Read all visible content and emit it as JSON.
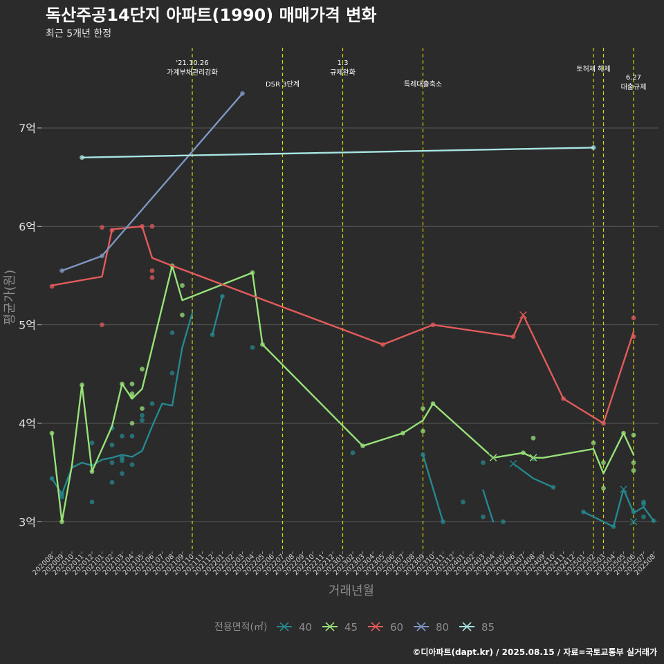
{
  "title": "독산주공14단지 아파트(1990) 매매가격 변화",
  "subtitle": "최근 5개년 한정",
  "caption": "©디아파트(dapt.kr) / 2025.08.15 / 자료=국토교통부 실거래가",
  "colors": {
    "background": "#2b2b2b",
    "grid": "#5a5a5a",
    "event_line": "#d7d700",
    "s40": "#26888f",
    "s45": "#98e27a",
    "s60": "#e35b5b",
    "s80": "#7e96c3",
    "s85": "#a8e6e4"
  },
  "chart_data": {
    "type": "line",
    "xlabel": "거래년월",
    "ylabel": "평균가(원)",
    "ylim": [
      2.7,
      7.85
    ],
    "y_ticks": [
      3,
      4,
      5,
      6,
      7
    ],
    "y_tick_labels": [
      "3억",
      "4억",
      "5억",
      "6억",
      "7억"
    ],
    "grid": true,
    "x_categories": [
      "202008",
      "202009",
      "202010",
      "202011",
      "202012",
      "202101",
      "202102",
      "202103",
      "202104",
      "202105",
      "202106",
      "202107",
      "202108",
      "202109",
      "202110",
      "202111",
      "202112",
      "202201",
      "202202",
      "202203",
      "202204",
      "202205",
      "202206",
      "202207",
      "202208",
      "202209",
      "202210",
      "202211",
      "202212",
      "202301",
      "202302",
      "202303",
      "202304",
      "202305",
      "202306",
      "202307",
      "202308",
      "202309",
      "202310",
      "202311",
      "202312",
      "202401",
      "202402",
      "202403",
      "202404",
      "202405",
      "202406",
      "202407",
      "202408",
      "202409",
      "202410",
      "202411",
      "202412",
      "202501",
      "202502",
      "202503",
      "202504",
      "202505",
      "202506",
      "202507",
      "202508"
    ],
    "legend_title": "전용면적(㎡)",
    "legend_position": "bottom",
    "events": [
      {
        "x": "202110",
        "label": "'21.10.26\n가계부채관리강화",
        "row": "top"
      },
      {
        "x": "202207",
        "label": "DSR 3단계",
        "row": "low"
      },
      {
        "x": "202301",
        "label": "1.3\n규제완화",
        "row": "top"
      },
      {
        "x": "202309",
        "label": "특례대출축소",
        "row": "low"
      },
      {
        "x": "202502",
        "label": "토허제 해제",
        "row": "mid"
      },
      {
        "x": "202503",
        "label": "",
        "row": "none"
      },
      {
        "x": "202506",
        "label": "6.27\n대출규제",
        "row": "low2"
      }
    ],
    "series": [
      {
        "name": "40",
        "color_key": "s40",
        "line_segments": [
          [
            [
              "202008",
              3.44
            ],
            [
              "202009",
              3.28
            ],
            [
              "202010",
              3.55
            ],
            [
              "202011",
              3.6
            ],
            [
              "202012",
              3.57
            ],
            [
              "202101",
              3.63
            ],
            [
              "202102",
              3.65
            ],
            [
              "202103",
              3.68
            ],
            [
              "202104",
              3.66
            ],
            [
              "202105",
              3.72
            ],
            [
              "202106",
              3.97
            ],
            [
              "202107",
              4.2
            ],
            [
              "202108",
              4.18
            ],
            [
              "202109",
              4.77
            ],
            [
              "202110",
              5.12
            ]
          ],
          [
            [
              "202112",
              4.9
            ],
            [
              "202201",
              5.29
            ]
          ],
          [
            [
              "202309",
              3.68
            ],
            [
              "202311",
              3.0
            ]
          ],
          [
            [
              "202403",
              3.32
            ],
            [
              "202404",
              3.0
            ]
          ],
          [
            [
              "202406",
              3.59
            ],
            [
              "202408",
              3.44
            ],
            [
              "202410",
              3.35
            ]
          ],
          [
            [
              "202501",
              3.1
            ],
            [
              "202504",
              2.95
            ],
            [
              "202505",
              3.33
            ],
            [
              "202506",
              3.09
            ],
            [
              "202507",
              3.15
            ],
            [
              "202508",
              3.01
            ]
          ]
        ],
        "points": [
          [
            "202008",
            3.44
          ],
          [
            "202009",
            3.28
          ],
          [
            "202009",
            3.25
          ],
          [
            "202012",
            3.2
          ],
          [
            "202012",
            3.8
          ],
          [
            "202102",
            3.95
          ],
          [
            "202102",
            3.78
          ],
          [
            "202102",
            3.4
          ],
          [
            "202102",
            3.6
          ],
          [
            "202103",
            3.87
          ],
          [
            "202103",
            3.65
          ],
          [
            "202103",
            3.62
          ],
          [
            "202103",
            3.49
          ],
          [
            "202104",
            3.87
          ],
          [
            "202104",
            3.58
          ],
          [
            "202105",
            4.08
          ],
          [
            "202105",
            4.03
          ],
          [
            "202106",
            4.2
          ],
          [
            "202108",
            4.51
          ],
          [
            "202108",
            4.92
          ],
          [
            "202112",
            4.9
          ],
          [
            "202201",
            5.29
          ],
          [
            "202204",
            4.77
          ],
          [
            "202302",
            3.7
          ],
          [
            "202309",
            3.68
          ],
          [
            "202311",
            3.0
          ],
          [
            "202401",
            3.2
          ],
          [
            "202403",
            3.6
          ],
          [
            "202403",
            3.05
          ],
          [
            "202405",
            3.0
          ],
          [
            "202408",
            3.64
          ],
          [
            "202410",
            3.35
          ],
          [
            "202501",
            3.1
          ],
          [
            "202504",
            2.95
          ],
          [
            "202506",
            3.1
          ],
          [
            "202507",
            3.2
          ],
          [
            "202507",
            3.18
          ],
          [
            "202507",
            3.05
          ],
          [
            "202508",
            3.01
          ]
        ],
        "cross_points": [
          [
            "202406",
            3.59
          ],
          [
            "202505",
            3.33
          ],
          [
            "202506",
            3.0
          ]
        ]
      },
      {
        "name": "45",
        "color_key": "s45",
        "line_segments": [
          [
            [
              "202008",
              3.9
            ],
            [
              "202009",
              3.0
            ],
            [
              "202010",
              3.57
            ],
            [
              "202011",
              4.39
            ],
            [
              "202012",
              3.51
            ],
            [
              "202102",
              3.97
            ],
            [
              "202103",
              4.4
            ],
            [
              "202104",
              4.25
            ],
            [
              "202105",
              4.35
            ],
            [
              "202108",
              5.6
            ],
            [
              "202109",
              5.25
            ],
            [
              "202204",
              5.53
            ],
            [
              "202205",
              4.8
            ],
            [
              "202303",
              3.77
            ],
            [
              "202307",
              3.9
            ],
            [
              "202309",
              4.03
            ],
            [
              "202310",
              4.2
            ],
            [
              "202404",
              3.65
            ],
            [
              "202407",
              3.7
            ],
            [
              "202408",
              3.65
            ],
            [
              "202409",
              3.65
            ],
            [
              "202502",
              3.74
            ],
            [
              "202503",
              3.49
            ],
            [
              "202505",
              3.9
            ],
            [
              "202506",
              3.68
            ]
          ]
        ],
        "points": [
          [
            "202008",
            3.9
          ],
          [
            "202009",
            3.0
          ],
          [
            "202011",
            4.39
          ],
          [
            "202012",
            3.51
          ],
          [
            "202103",
            4.4
          ],
          [
            "202104",
            4.4
          ],
          [
            "202104",
            4.3
          ],
          [
            "202104",
            4.27
          ],
          [
            "202104",
            4.0
          ],
          [
            "202105",
            4.55
          ],
          [
            "202105",
            4.15
          ],
          [
            "202108",
            5.6
          ],
          [
            "202109",
            5.4
          ],
          [
            "202109",
            5.1
          ],
          [
            "202204",
            5.53
          ],
          [
            "202205",
            4.8
          ],
          [
            "202303",
            3.77
          ],
          [
            "202307",
            3.9
          ],
          [
            "202309",
            4.15
          ],
          [
            "202309",
            3.92
          ],
          [
            "202310",
            4.2
          ],
          [
            "202407",
            3.7
          ],
          [
            "202408",
            3.85
          ],
          [
            "202502",
            3.8
          ],
          [
            "202503",
            3.6
          ],
          [
            "202503",
            3.34
          ],
          [
            "202505",
            3.9
          ],
          [
            "202506",
            3.88
          ],
          [
            "202506",
            3.6
          ],
          [
            "202506",
            3.52
          ]
        ],
        "cross_points": [
          [
            "202404",
            3.65
          ],
          [
            "202408",
            3.65
          ]
        ]
      },
      {
        "name": "60",
        "color_key": "s60",
        "line_segments": [
          [
            [
              "202008",
              5.4
            ],
            [
              "202101",
              5.49
            ],
            [
              "202102",
              5.97
            ],
            [
              "202105",
              6.0
            ],
            [
              "202106",
              5.68
            ],
            [
              "202108",
              5.6
            ],
            [
              "202305",
              4.8
            ],
            [
              "202310",
              5.0
            ],
            [
              "202406",
              4.88
            ],
            [
              "202407",
              5.1
            ],
            [
              "202411",
              4.25
            ],
            [
              "202503",
              4.0
            ],
            [
              "202506",
              4.93
            ]
          ]
        ],
        "points": [
          [
            "202008",
            5.39
          ],
          [
            "202101",
            5.99
          ],
          [
            "202101",
            5.0
          ],
          [
            "202102",
            5.96
          ],
          [
            "202105",
            6.0
          ],
          [
            "202106",
            6.0
          ],
          [
            "202106",
            5.55
          ],
          [
            "202106",
            5.48
          ],
          [
            "202305",
            4.8
          ],
          [
            "202310",
            5.0
          ],
          [
            "202406",
            4.88
          ],
          [
            "202411",
            4.25
          ],
          [
            "202503",
            4.0
          ],
          [
            "202506",
            5.07
          ],
          [
            "202506",
            4.88
          ]
        ],
        "cross_points": [
          [
            "202407",
            5.1
          ]
        ]
      },
      {
        "name": "80",
        "color_key": "s80",
        "line_segments": [
          [
            [
              "202009",
              5.55
            ],
            [
              "202101",
              5.7
            ],
            [
              "202203",
              7.35
            ]
          ]
        ],
        "points": [
          [
            "202009",
            5.55
          ],
          [
            "202101",
            5.7
          ],
          [
            "202203",
            7.35
          ]
        ],
        "cross_points": []
      },
      {
        "name": "85",
        "color_key": "s85",
        "line_segments": [
          [
            [
              "202011",
              6.7
            ],
            [
              "202502",
              6.8
            ]
          ]
        ],
        "points": [
          [
            "202011",
            6.7
          ],
          [
            "202502",
            6.8
          ]
        ],
        "cross_points": []
      }
    ]
  }
}
